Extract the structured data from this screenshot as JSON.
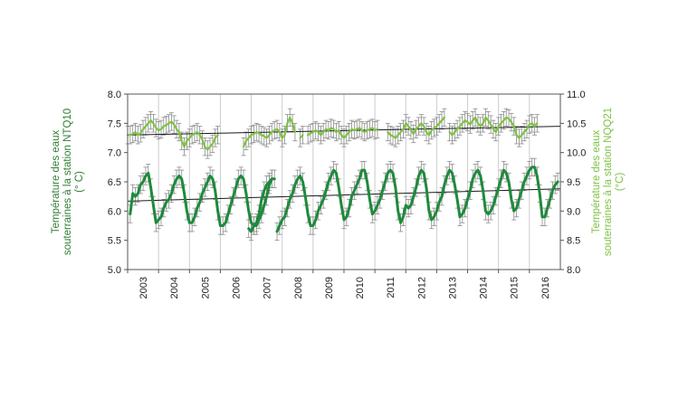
{
  "chart_data": {
    "type": "line",
    "axes": {
      "x": {
        "type": "time",
        "range": [
          "2003-01-01",
          "2016-12-31"
        ],
        "tick_labels": [
          "2003",
          "2004",
          "2005",
          "2006",
          "2007",
          "2008",
          "2009",
          "2010",
          "2011",
          "2012",
          "2013",
          "2014",
          "2015",
          "2016"
        ],
        "tick_label_rotation": "vertical"
      },
      "y_left": {
        "range": [
          5.0,
          8.0
        ],
        "ticks": [
          "5.0",
          "5.5",
          "6.0",
          "6.5",
          "7.0",
          "7.5",
          "8.0"
        ],
        "label": [
          "Température des eaux",
          "souterraines à la station NTQ10",
          "(° C)"
        ],
        "color": "#2e7d32"
      },
      "y_right": {
        "range": [
          8.0,
          11.0
        ],
        "ticks": [
          "8.0",
          "8.5",
          "9.0",
          "9.5",
          "10.0",
          "10.5",
          "11.0"
        ],
        "label": [
          "Température des eaux",
          "souterraines à la station NQQ21",
          "(°C)"
        ],
        "color": "#7dc242"
      }
    },
    "grid": "vertical lines at year boundaries",
    "legend": "none",
    "error_bars": {
      "color": "#8c8c8c",
      "half_width": 0.15
    },
    "series": [
      {
        "axis": "left",
        "color": "#1e8a3c",
        "style": "thick line, seasonal cycle with gaps",
        "segments": [
          {
            "start": "2003-02-01",
            "step_months": 1,
            "values": [
              5.95,
              6.3,
              6.25,
              6.3,
              6.45,
              6.5,
              6.6,
              6.65,
              6.4,
              6.1,
              5.8,
              5.85,
              5.9,
              6.05,
              6.15,
              6.2,
              6.3,
              6.45,
              6.55,
              6.6,
              6.55,
              6.3,
              6.0,
              5.8,
              5.8,
              5.9,
              6.05,
              6.15,
              6.3,
              6.4,
              6.5,
              6.6,
              6.55,
              6.35,
              6.0,
              5.75,
              5.75,
              5.8,
              5.95,
              6.1,
              6.25,
              6.4,
              6.55,
              6.6,
              6.55,
              6.3,
              6.0,
              5.8,
              5.75,
              5.75,
              5.85,
              5.95,
              6.1,
              6.25,
              6.45,
              6.55,
              6.55
            ]
          },
          {
            "start": "2006-12-01",
            "step_months": 1,
            "values": [
              5.7,
              5.65,
              5.75,
              5.8,
              5.95,
              6.2,
              6.35,
              6.45,
              6.5,
              6.55
            ]
          },
          {
            "start": "2007-11-01",
            "step_months": 1,
            "values": [
              5.65,
              5.75,
              5.85,
              5.9,
              6.05,
              6.2,
              6.3,
              6.45,
              6.55,
              6.6,
              6.5,
              6.25,
              5.95,
              5.75,
              5.75,
              5.85,
              6.0,
              6.1,
              6.2,
              6.35,
              6.5,
              6.6,
              6.7,
              6.65,
              6.4,
              6.1,
              5.85,
              5.9,
              6.05,
              6.25,
              6.35,
              6.45,
              6.55,
              6.7,
              6.7,
              6.5,
              6.2,
              5.95,
              6.0,
              6.1,
              6.2,
              6.35,
              6.5,
              6.65,
              6.7,
              6.65,
              6.4,
              6.0,
              5.8,
              5.9,
              6.1,
              6.05,
              6.1,
              6.25,
              6.4,
              6.6,
              6.7,
              6.65,
              6.4,
              6.0,
              5.85,
              5.9,
              6.0,
              6.15,
              6.25,
              6.45,
              6.6,
              6.7,
              6.65,
              6.45,
              6.2,
              5.9,
              5.95,
              6.05,
              6.2,
              6.35,
              6.55,
              6.65,
              6.7,
              6.6,
              6.35,
              6.0,
              5.95,
              6.0,
              6.1,
              6.25,
              6.4,
              6.55,
              6.7,
              6.65,
              6.5,
              6.2,
              6.0,
              6.05,
              6.2,
              6.35,
              6.5,
              6.6,
              6.7,
              6.75,
              6.75,
              6.6,
              6.3,
              5.9,
              5.9,
              6.05,
              6.2,
              6.35,
              6.45,
              6.5
            ]
          }
        ]
      },
      {
        "axis": "right",
        "color": "#7dc242",
        "style": "line with gaps",
        "segments": [
          {
            "start": "2003-01-01",
            "step_months": 1,
            "values": [
              10.3,
              10.3,
              10.32,
              10.35,
              10.3,
              10.33,
              10.4,
              10.45,
              10.5,
              10.55,
              10.5,
              10.42,
              10.38,
              10.4,
              10.45,
              10.47,
              10.5,
              10.53,
              10.48,
              10.4,
              10.35,
              10.2,
              10.1,
              10.2,
              10.25,
              10.3,
              10.32,
              10.35,
              10.3,
              10.22,
              10.1,
              10.05,
              10.1,
              10.15,
              10.25,
              10.3
            ]
          },
          {
            "start": "2006-10-01",
            "step_months": 1,
            "values": [
              10.1,
              10.2,
              10.25,
              10.3,
              10.32,
              10.35,
              10.33,
              10.3,
              10.28,
              10.25,
              10.3,
              10.35,
              10.38,
              10.4,
              10.35,
              10.25,
              10.3,
              10.5,
              10.6,
              10.5,
              10.35
            ]
          },
          {
            "start": "2008-08-01",
            "step_months": 1,
            "values": [
              10.25,
              10.3
            ]
          },
          {
            "start": "2008-11-01",
            "step_months": 1,
            "values": [
              10.3,
              10.33,
              10.35,
              10.38,
              10.35,
              10.3,
              10.35,
              10.4,
              10.38,
              10.42,
              10.4,
              10.35,
              10.38,
              10.3,
              10.25,
              10.3,
              10.35,
              10.4,
              10.38,
              10.4,
              10.42,
              10.38,
              10.35,
              10.38,
              10.4,
              10.42,
              10.38,
              10.4
            ]
          },
          {
            "start": "2011-06-01",
            "step_months": 1,
            "values": [
              10.35,
              10.3,
              10.28,
              10.25,
              10.3,
              10.35,
              10.4,
              10.5,
              10.45,
              10.38,
              10.32,
              10.4,
              10.45,
              10.5,
              10.45,
              10.35,
              10.3,
              10.38,
              10.42,
              10.45,
              10.5,
              10.55,
              10.6
            ]
          },
          {
            "start": "2013-06-01",
            "step_months": 1,
            "values": [
              10.35,
              10.3,
              10.35,
              10.4,
              10.45,
              10.5,
              10.55,
              10.52,
              10.48,
              10.55,
              10.6,
              10.5,
              10.45,
              10.5,
              10.6,
              10.55,
              10.48,
              10.4,
              10.35,
              10.45,
              10.5,
              10.55,
              10.6,
              10.58,
              10.52,
              10.45,
              10.3,
              10.25,
              10.3,
              10.35,
              10.4,
              10.48,
              10.5,
              10.45,
              10.5
            ]
          }
        ]
      }
    ],
    "trend_lines": [
      {
        "axis": "left",
        "color": "#1a1a1a",
        "from": [
          "2003-01-01",
          6.17
        ],
        "to": [
          "2016-12-31",
          6.38
        ]
      },
      {
        "axis": "right",
        "color": "#1a1a1a",
        "from": [
          "2003-01-01",
          10.3
        ],
        "to": [
          "2016-12-31",
          10.45
        ]
      }
    ]
  }
}
